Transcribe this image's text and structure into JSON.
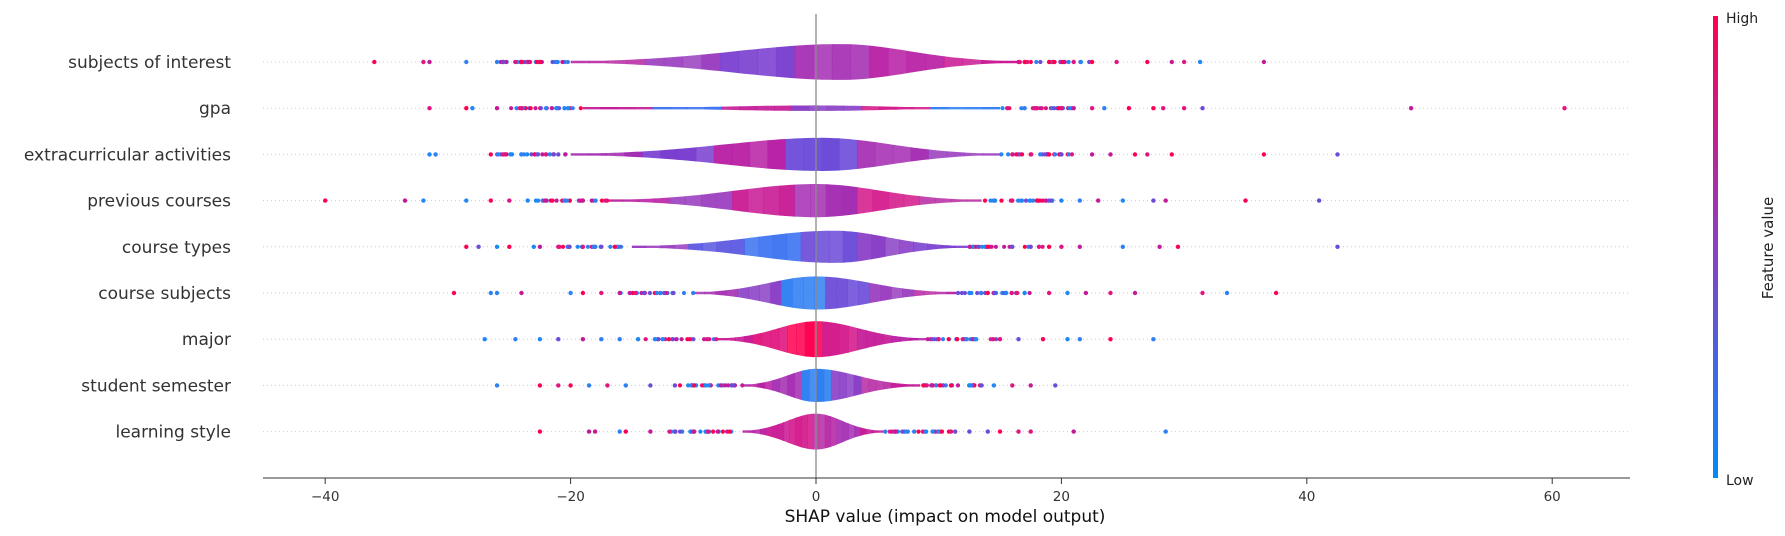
{
  "chart_data": {
    "type": "violin",
    "xlabel": "SHAP value (impact on model output)",
    "xlim": [
      -45,
      66
    ],
    "x_ticks": [
      -40,
      -20,
      0,
      20,
      40,
      60
    ],
    "grid": false,
    "colorbar": {
      "title": "Feature value",
      "high_label": "High",
      "low_label": "Low",
      "high_color": "#ff0051",
      "low_color": "#008bfb"
    },
    "features": [
      {
        "name": "subjects of interest",
        "range": [
          -36,
          36.5
        ],
        "body": [
          -20,
          16.5
        ],
        "peak": 2,
        "max_width": 0.78,
        "colors": [
          "#b82ea6",
          "#9b3fc0",
          "#7a3fd0",
          "#a52fb3",
          "#b81fa4",
          "#c91b95"
        ],
        "outliers": [
          -36,
          -32,
          -31.5,
          -28.5,
          -26,
          -25.5,
          -24,
          -23.5,
          -22.5,
          17,
          19,
          21,
          22.5,
          24.5,
          27,
          29,
          30,
          31.3,
          36.5
        ]
      },
      {
        "name": "gpa",
        "range": [
          -31.5,
          61
        ],
        "body": [
          -19,
          15
        ],
        "peak": 0,
        "max_width": 0.12,
        "colors": [
          "#c51a97",
          "#3a72f0",
          "#c51a97",
          "#8a3fc6",
          "#d4198b",
          "#2f80f2"
        ],
        "outliers": [
          -31.5,
          -28.5,
          -28,
          -26,
          -24,
          -22,
          -20.5,
          17,
          18,
          20,
          21,
          22.5,
          23.5,
          25.5,
          27.5,
          28.3,
          30,
          31.5,
          48.5,
          61
        ]
      },
      {
        "name": "extracurricular activities",
        "range": [
          -31.5,
          42.5
        ],
        "body": [
          -20,
          15
        ],
        "peak": 0.5,
        "max_width": 0.72,
        "colors": [
          "#a52fb3",
          "#7a3fd0",
          "#b81fa4",
          "#6b4bd8",
          "#a52fb3",
          "#9b3fc0"
        ],
        "outliers": [
          -31.5,
          -31,
          -26.5,
          -25.5,
          -24,
          -22,
          -21,
          16,
          17.5,
          19,
          20,
          22.5,
          24,
          26,
          27,
          29,
          36.5,
          42.5
        ]
      },
      {
        "name": "previous courses",
        "range": [
          -40,
          41
        ],
        "body": [
          -17,
          13.5
        ],
        "peak": 0,
        "max_width": 0.72,
        "colors": [
          "#b81fa4",
          "#9b3fc0",
          "#c91b95",
          "#a52fb3",
          "#d4198b",
          "#b82ea6"
        ],
        "outliers": [
          -40,
          -33.5,
          -32,
          -28.5,
          -26.5,
          -25,
          -23.5,
          -22,
          -20.5,
          -19,
          14.5,
          16,
          18,
          20,
          21.5,
          23,
          25,
          27.5,
          28.5,
          35,
          41
        ]
      },
      {
        "name": "course types",
        "range": [
          -28.5,
          42.5
        ],
        "body": [
          -15,
          12.5
        ],
        "peak": 1.5,
        "max_width": 0.7,
        "colors": [
          "#9b3fc0",
          "#5a57e0",
          "#3a72f0",
          "#6b4bd8",
          "#8a3fc6",
          "#7a3fd0"
        ],
        "outliers": [
          -28.5,
          -27.5,
          -26,
          -25,
          -23,
          -22.5,
          -21,
          -19,
          -17.5,
          14,
          16,
          17.5,
          19,
          20,
          21.5,
          25,
          28,
          29.5,
          42.5
        ]
      },
      {
        "name": "course subjects",
        "range": [
          -29.5,
          37.5
        ],
        "body": [
          -10,
          11.5
        ],
        "peak": 0,
        "max_width": 0.72,
        "colors": [
          "#a52fb3",
          "#8a3fc6",
          "#2f80f2",
          "#6b4bd8",
          "#9b3fc0",
          "#b82ea6"
        ],
        "outliers": [
          -29.5,
          -26.5,
          -26,
          -24,
          -20,
          -19,
          -17.5,
          -16,
          -14,
          12.5,
          14,
          15.5,
          17,
          19,
          20.5,
          22,
          24,
          26,
          31.5,
          33.5,
          37.5
        ]
      },
      {
        "name": "major",
        "range": [
          -27,
          27.5
        ],
        "body": [
          -8,
          9
        ],
        "peak": 0,
        "max_width": 0.78,
        "colors": [
          "#c91b95",
          "#e0157f",
          "#ff0051",
          "#d4198b",
          "#c51a97",
          "#b81fa4"
        ],
        "outliers": [
          -27,
          -24.5,
          -22.5,
          -21,
          -19,
          -17.5,
          -16,
          -14.5,
          -12.5,
          10,
          11.5,
          13,
          15,
          16.5,
          18.5,
          20.5,
          21.5,
          24,
          27.5
        ]
      },
      {
        "name": "student semester",
        "range": [
          -26,
          19.5
        ],
        "body": [
          -6,
          8.5
        ],
        "peak": 0,
        "max_width": 0.72,
        "colors": [
          "#b81fa4",
          "#a52fb3",
          "#2f80f2",
          "#8a3fc6",
          "#b82ea6",
          "#c51a97"
        ],
        "outliers": [
          -26,
          -22.5,
          -21,
          -20,
          -18.5,
          -17,
          -15.5,
          -13.5,
          -11.5,
          -9,
          9.5,
          11,
          12.5,
          13.5,
          14.5,
          16,
          17.5,
          19.5
        ]
      },
      {
        "name": "learning style",
        "range": [
          -22.5,
          28.5
        ],
        "body": [
          -6,
          5.5
        ],
        "peak": 0,
        "max_width": 0.78,
        "colors": [
          "#b81fa4",
          "#c91b95",
          "#d4198b",
          "#b82ea6",
          "#a52fb3",
          "#c51a97"
        ],
        "outliers": [
          -22.5,
          -18.5,
          -18,
          -16,
          -15.5,
          -13.5,
          -11.5,
          -10,
          -8,
          6.5,
          8,
          9.5,
          11,
          12.5,
          14,
          15,
          16.5,
          17.5,
          21,
          28.5
        ]
      }
    ]
  }
}
